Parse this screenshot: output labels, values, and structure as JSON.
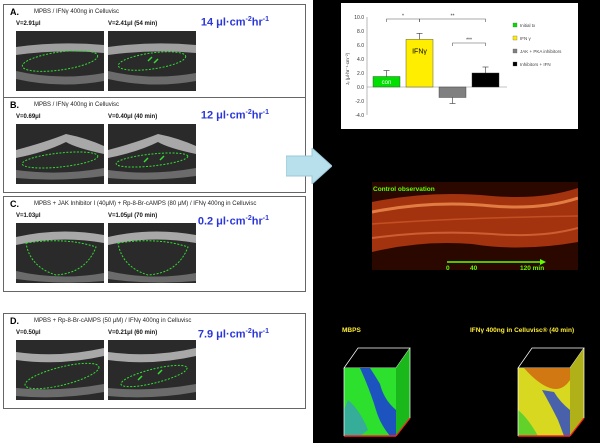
{
  "panels": [
    {
      "letter": "A.",
      "condition": "MPBS / IFNγ 400ng in Celluvisc",
      "vol_left": "V=2.91μl",
      "vol_right": "V=2.41μl (54 min)",
      "rate": "14 μl·cm",
      "rate_exp": "-2",
      "rate_unit": "hr",
      "rate_unit_exp": "-1"
    },
    {
      "letter": "B.",
      "condition": "MPBS / IFNγ 400ng in Celluvisc",
      "vol_left": "V=0.69μl",
      "vol_right": "V=0.40μl (40 min)",
      "rate": "12 μl·cm",
      "rate_exp": "-2",
      "rate_unit": "hr",
      "rate_unit_exp": "-1"
    },
    {
      "letter": "C.",
      "condition": "MPBS + JAK Inhibitor I (40μM) + Rp-8-Br-cAMPS (80 μM) / IFNγ 400ng in Celluvisc",
      "vol_left": "V=1.03μl",
      "vol_right": "V=1.05μl (70 min)",
      "rate": "0.2 μl·cm",
      "rate_exp": "-2",
      "rate_unit": "hr",
      "rate_unit_exp": "-1"
    },
    {
      "letter": "D.",
      "condition": "MPBS + Rp-8-Br-cAMPS (50 μM) / IFNγ 400ng in Celluvisc",
      "vol_left": "V=0.50μl",
      "vol_right": "V=0.21μl (60 min)",
      "rate": "7.9 μl·cm",
      "rate_exp": "-2",
      "rate_unit": "hr",
      "rate_unit_exp": "-1"
    }
  ],
  "chart_data": {
    "type": "bar",
    "ylabel": "Jᵥ (μl·hr⁻¹·cm⁻²)",
    "ylim": [
      -4.0,
      10.0
    ],
    "yticks": [
      "10.0",
      "8.0",
      "6.0",
      "4.0",
      "2.0",
      "0.0",
      "-2.0",
      "-4.0"
    ],
    "categories": [
      "con",
      "IFNγ",
      "JAK + PKA inhibitors",
      "Inhibitors + IFN"
    ],
    "values": [
      1.5,
      6.8,
      -1.5,
      2.0
    ],
    "colors": [
      "#00e000",
      "#ffee00",
      "#808080",
      "#000000"
    ],
    "bar_labels": [
      "con",
      "IFNγ",
      "",
      ""
    ],
    "significance": [
      "*",
      "**",
      "***"
    ],
    "legend": [
      "Initial tx",
      "IFN γ",
      "JAK + PKA inhibitors",
      "Inhibitors + IFN"
    ]
  },
  "control": {
    "title": "Control observation",
    "ticks": [
      "0",
      "40",
      "120 min"
    ]
  },
  "cubes": {
    "left_title": "MBPS",
    "right_title": "IFNγ 400ng in Celluvisc® (40 min)"
  }
}
